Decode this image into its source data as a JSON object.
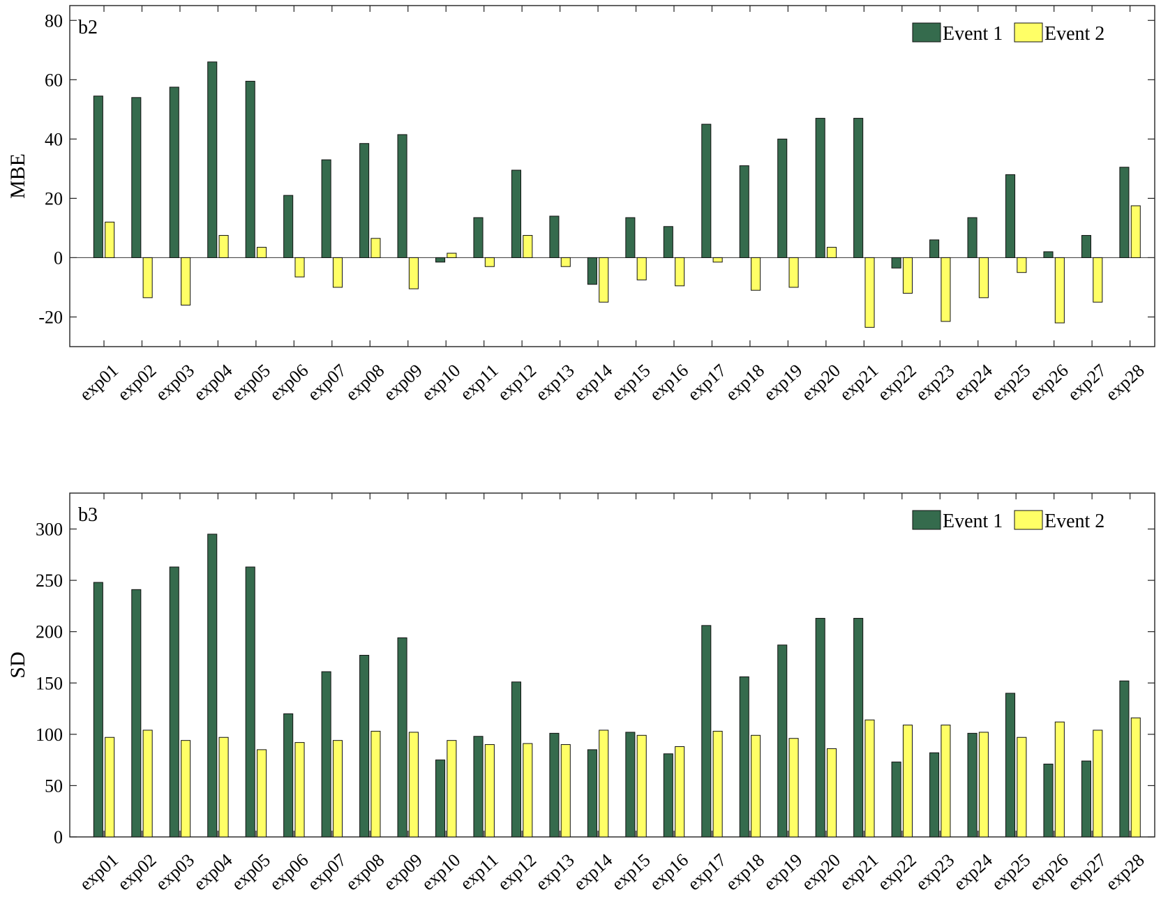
{
  "colors": {
    "event1": "#356b4d",
    "event2": "#ffff66",
    "stroke": "#111111"
  },
  "chart_data": [
    {
      "type": "bar",
      "panel_label": "b2",
      "ylabel": "MBE",
      "ylim": [
        -30,
        85
      ],
      "yticks": [
        -20,
        0,
        20,
        40,
        60,
        80
      ],
      "legend_position": "top-right",
      "categories": [
        "exp01",
        "exp02",
        "exp03",
        "exp04",
        "exp05",
        "exp06",
        "exp07",
        "exp08",
        "exp09",
        "exp10",
        "exp11",
        "exp12",
        "exp13",
        "exp14",
        "exp15",
        "exp16",
        "exp17",
        "exp18",
        "exp19",
        "exp20",
        "exp21",
        "exp22",
        "exp23",
        "exp24",
        "exp25",
        "exp26",
        "exp27",
        "exp28"
      ],
      "series": [
        {
          "name": "Event 1",
          "values": [
            54.5,
            54,
            57.5,
            66,
            59.5,
            21,
            33,
            38.5,
            41.5,
            -1.5,
            13.5,
            29.5,
            14,
            -9,
            13.5,
            10.5,
            45,
            31,
            40,
            47,
            47,
            -3.5,
            6,
            13.5,
            28,
            2,
            7.5,
            30.5
          ]
        },
        {
          "name": "Event 2",
          "values": [
            12,
            -13.5,
            -16,
            7.5,
            3.5,
            -6.5,
            -10,
            6.5,
            -10.5,
            1.5,
            -3,
            7.5,
            -3,
            -15,
            -7.5,
            -9.5,
            -1.5,
            -11,
            -10,
            3.5,
            -23.5,
            -12,
            -21.5,
            -13.5,
            -5,
            -22,
            -15,
            17.5
          ]
        }
      ]
    },
    {
      "type": "bar",
      "panel_label": "b3",
      "ylabel": "SD",
      "ylim": [
        0,
        335
      ],
      "yticks": [
        0,
        50,
        100,
        150,
        200,
        250,
        300
      ],
      "legend_position": "top-right",
      "categories": [
        "exp01",
        "exp02",
        "exp03",
        "exp04",
        "exp05",
        "exp06",
        "exp07",
        "exp08",
        "exp09",
        "exp10",
        "exp11",
        "exp12",
        "exp13",
        "exp14",
        "exp15",
        "exp16",
        "exp17",
        "exp18",
        "exp19",
        "exp20",
        "exp21",
        "exp22",
        "exp23",
        "exp24",
        "exp25",
        "exp26",
        "exp27",
        "exp28"
      ],
      "series": [
        {
          "name": "Event 1",
          "values": [
            248,
            241,
            263,
            295,
            263,
            120,
            161,
            177,
            194,
            75,
            98,
            151,
            101,
            85,
            102,
            81,
            206,
            156,
            187,
            213,
            213,
            73,
            82,
            101,
            140,
            71,
            74,
            152
          ]
        },
        {
          "name": "Event 2",
          "values": [
            97,
            104,
            94,
            97,
            85,
            92,
            94,
            103,
            102,
            94,
            90,
            91,
            90,
            104,
            99,
            88,
            103,
            99,
            96,
            86,
            114,
            109,
            109,
            102,
            97,
            112,
            104,
            116
          ]
        }
      ]
    }
  ]
}
